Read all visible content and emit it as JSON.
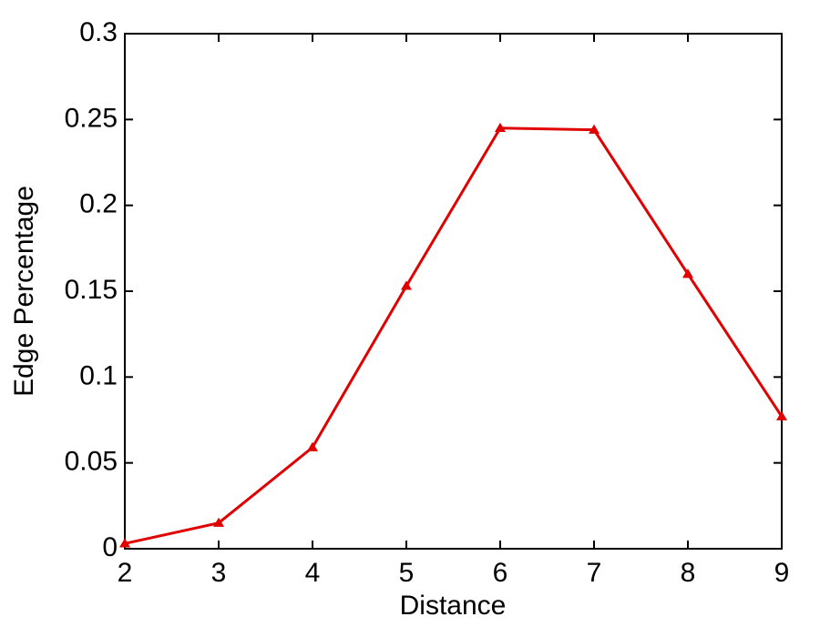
{
  "chart_data": {
    "type": "line",
    "x_label": "Distance",
    "y_label": "Edge Percentage",
    "x": [
      2,
      3,
      4,
      5,
      6,
      7,
      8,
      9
    ],
    "series": [
      {
        "color": "#e00000",
        "marker": "triangle",
        "values": [
          0.003,
          0.015,
          0.059,
          0.153,
          0.245,
          0.244,
          0.16,
          0.077
        ]
      }
    ],
    "xlim": [
      2,
      9
    ],
    "xticks": [
      2,
      3,
      4,
      5,
      6,
      7,
      8,
      9
    ],
    "ylim": [
      0,
      0.3
    ],
    "yticks": [
      0,
      0.05,
      0.1,
      0.15,
      0.2,
      0.25,
      0.3
    ],
    "grid": false
  }
}
